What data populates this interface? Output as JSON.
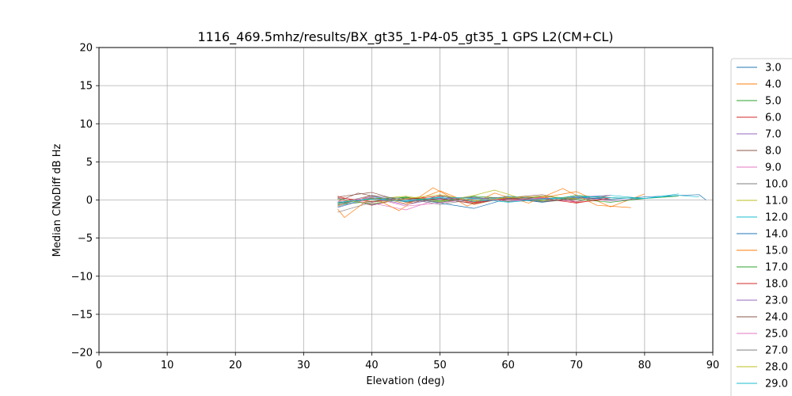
{
  "chart_data": {
    "type": "line",
    "title": "1116_469.5mhz/results/BX_gt35_1-P4-05_gt35_1 GPS L2(CM+CL)",
    "xlabel": "Elevation (deg)",
    "ylabel": "Median CNoDiff dB Hz",
    "xlim": [
      0,
      90
    ],
    "ylim": [
      -20,
      20
    ],
    "xticks": [
      0,
      10,
      20,
      30,
      40,
      50,
      60,
      70,
      80,
      90
    ],
    "yticks": [
      20,
      15,
      10,
      5,
      0,
      -5,
      -10,
      -15,
      -20
    ],
    "ytick_labels": [
      "20",
      "15",
      "10",
      "5",
      "0",
      "−5",
      "−10",
      "−15",
      "−20"
    ],
    "grid": true,
    "legend_position": "right, outside plot",
    "series": [
      {
        "name": "3.0",
        "color": "#1f77b4",
        "x": [
          35,
          40,
          45,
          50,
          55,
          60,
          65,
          70,
          75,
          80,
          85,
          88,
          89
        ],
        "y": [
          -0.4,
          0.2,
          -0.1,
          0.3,
          -0.2,
          0.1,
          0.2,
          0.3,
          0.1,
          0.4,
          0.6,
          0.7,
          0.0
        ]
      },
      {
        "name": "4.0",
        "color": "#ff7f0e",
        "x": [
          35,
          40,
          45,
          50,
          55,
          60,
          65,
          70,
          75,
          80
        ],
        "y": [
          -0.8,
          0.6,
          -0.5,
          1.2,
          -0.6,
          0.4,
          0.3,
          1.1,
          -0.9,
          0.8
        ]
      },
      {
        "name": "5.0",
        "color": "#2ca02c",
        "x": [
          35,
          40,
          45,
          50,
          55,
          60,
          65,
          70,
          75,
          80,
          85
        ],
        "y": [
          -0.6,
          -0.2,
          0.4,
          -0.3,
          0.5,
          0.2,
          -0.1,
          0.6,
          0.3,
          0.2,
          0.5
        ]
      },
      {
        "name": "6.0",
        "color": "#d62728",
        "x": [
          35,
          40,
          45,
          50,
          55,
          60,
          65,
          70,
          75
        ],
        "y": [
          0.5,
          -0.7,
          0.3,
          0.1,
          -0.4,
          0.2,
          0.4,
          -0.3,
          0.1
        ]
      },
      {
        "name": "7.0",
        "color": "#9467bd",
        "x": [
          35,
          40,
          45,
          50,
          55,
          60,
          65,
          70,
          75,
          80
        ],
        "y": [
          -1.0,
          0.3,
          -0.6,
          0.2,
          0.4,
          -0.2,
          0.1,
          0.3,
          -0.1,
          0.2
        ]
      },
      {
        "name": "8.0",
        "color": "#8c564b",
        "x": [
          35,
          38,
          42,
          46,
          50,
          55,
          60,
          65,
          70,
          75
        ],
        "y": [
          -0.2,
          0.9,
          0.2,
          -0.4,
          0.6,
          -0.1,
          0.3,
          0.7,
          -0.2,
          0.6
        ]
      },
      {
        "name": "9.0",
        "color": "#e377c2",
        "x": [
          35,
          40,
          45,
          50,
          55,
          60,
          65,
          70
        ],
        "y": [
          0.1,
          -0.4,
          -1.3,
          0.2,
          -0.5,
          0.3,
          0.1,
          -0.2
        ]
      },
      {
        "name": "10.0",
        "color": "#7f7f7f",
        "x": [
          35,
          40,
          45,
          50,
          55,
          60,
          65,
          70,
          75
        ],
        "y": [
          -1.6,
          -0.3,
          0.2,
          -0.6,
          0.1,
          0.4,
          -0.3,
          0.2,
          0.3
        ]
      },
      {
        "name": "11.0",
        "color": "#bcbd22",
        "x": [
          35,
          40,
          45,
          50,
          55,
          58,
          62,
          66,
          70
        ],
        "y": [
          -0.3,
          0.1,
          0.5,
          -0.2,
          0.6,
          1.3,
          0.2,
          -0.1,
          0.4
        ]
      },
      {
        "name": "12.0",
        "color": "#17becf",
        "x": [
          35,
          40,
          45,
          50,
          55,
          60,
          65,
          70,
          75,
          80,
          85
        ],
        "y": [
          -0.9,
          0.4,
          -0.1,
          0.3,
          -0.2,
          0.5,
          0.1,
          0.3,
          0.6,
          0.2,
          0.8
        ]
      },
      {
        "name": "14.0",
        "color": "#1f77b4",
        "x": [
          35,
          40,
          45,
          50,
          55,
          60,
          65,
          70,
          75
        ],
        "y": [
          0.2,
          -0.6,
          0.3,
          -0.4,
          -1.1,
          0.2,
          -0.3,
          0.4,
          0.1
        ]
      },
      {
        "name": "15.0",
        "color": "#ff7f0e",
        "x": [
          35,
          36,
          40,
          44,
          49,
          54,
          58,
          63,
          68,
          73,
          78
        ],
        "y": [
          -1.2,
          -2.3,
          0.4,
          -1.4,
          1.6,
          -0.8,
          0.9,
          -0.4,
          1.5,
          -0.7,
          -1.0
        ]
      },
      {
        "name": "17.0",
        "color": "#2ca02c",
        "x": [
          35,
          40,
          45,
          50,
          55,
          60,
          65,
          70,
          75,
          80
        ],
        "y": [
          -0.5,
          0.2,
          0.3,
          -0.1,
          0.4,
          -0.2,
          0.5,
          0.1,
          -0.3,
          0.2
        ]
      },
      {
        "name": "18.0",
        "color": "#d62728",
        "x": [
          35,
          40,
          45,
          50,
          55,
          60,
          65,
          70,
          75
        ],
        "y": [
          0.3,
          -0.2,
          0.1,
          0.5,
          -0.3,
          0.1,
          0.2,
          -0.4,
          0.3
        ]
      },
      {
        "name": "23.0",
        "color": "#9467bd",
        "x": [
          35,
          40,
          45,
          50,
          55,
          60,
          65,
          70,
          75
        ],
        "y": [
          -0.7,
          0.5,
          -0.2,
          0.1,
          0.3,
          -0.1,
          0.2,
          0.4,
          0.6
        ]
      },
      {
        "name": "24.0",
        "color": "#8c564b",
        "x": [
          35,
          40,
          45,
          50,
          55,
          60,
          65,
          70
        ],
        "y": [
          0.4,
          1.0,
          -0.3,
          0.2,
          -0.5,
          0.3,
          -0.2,
          0.1
        ]
      },
      {
        "name": "25.0",
        "color": "#e377c2",
        "x": [
          35,
          40,
          45,
          50,
          55,
          60,
          65
        ],
        "y": [
          -0.2,
          0.3,
          -0.8,
          -0.4,
          0.2,
          -0.1,
          0.3
        ]
      },
      {
        "name": "27.0",
        "color": "#7f7f7f",
        "x": [
          35,
          40,
          45,
          50,
          55,
          60,
          65,
          70
        ],
        "y": [
          -0.4,
          0.6,
          0.1,
          -0.3,
          0.2,
          0.4,
          -0.2,
          0.3
        ]
      },
      {
        "name": "28.0",
        "color": "#bcbd22",
        "x": [
          35,
          40,
          45,
          50,
          55,
          60,
          65,
          70
        ],
        "y": [
          0.1,
          -0.5,
          0.2,
          0.7,
          -0.1,
          0.3,
          0.5,
          0.2
        ]
      },
      {
        "name": "29.0",
        "color": "#17becf",
        "x": [
          35,
          40,
          45,
          50,
          55,
          60,
          65,
          70,
          75,
          80,
          85,
          88
        ],
        "y": [
          -0.3,
          0.1,
          -0.2,
          0.4,
          0.2,
          -0.3,
          0.1,
          0.5,
          0.3,
          0.2,
          0.6,
          0.4
        ]
      }
    ]
  }
}
